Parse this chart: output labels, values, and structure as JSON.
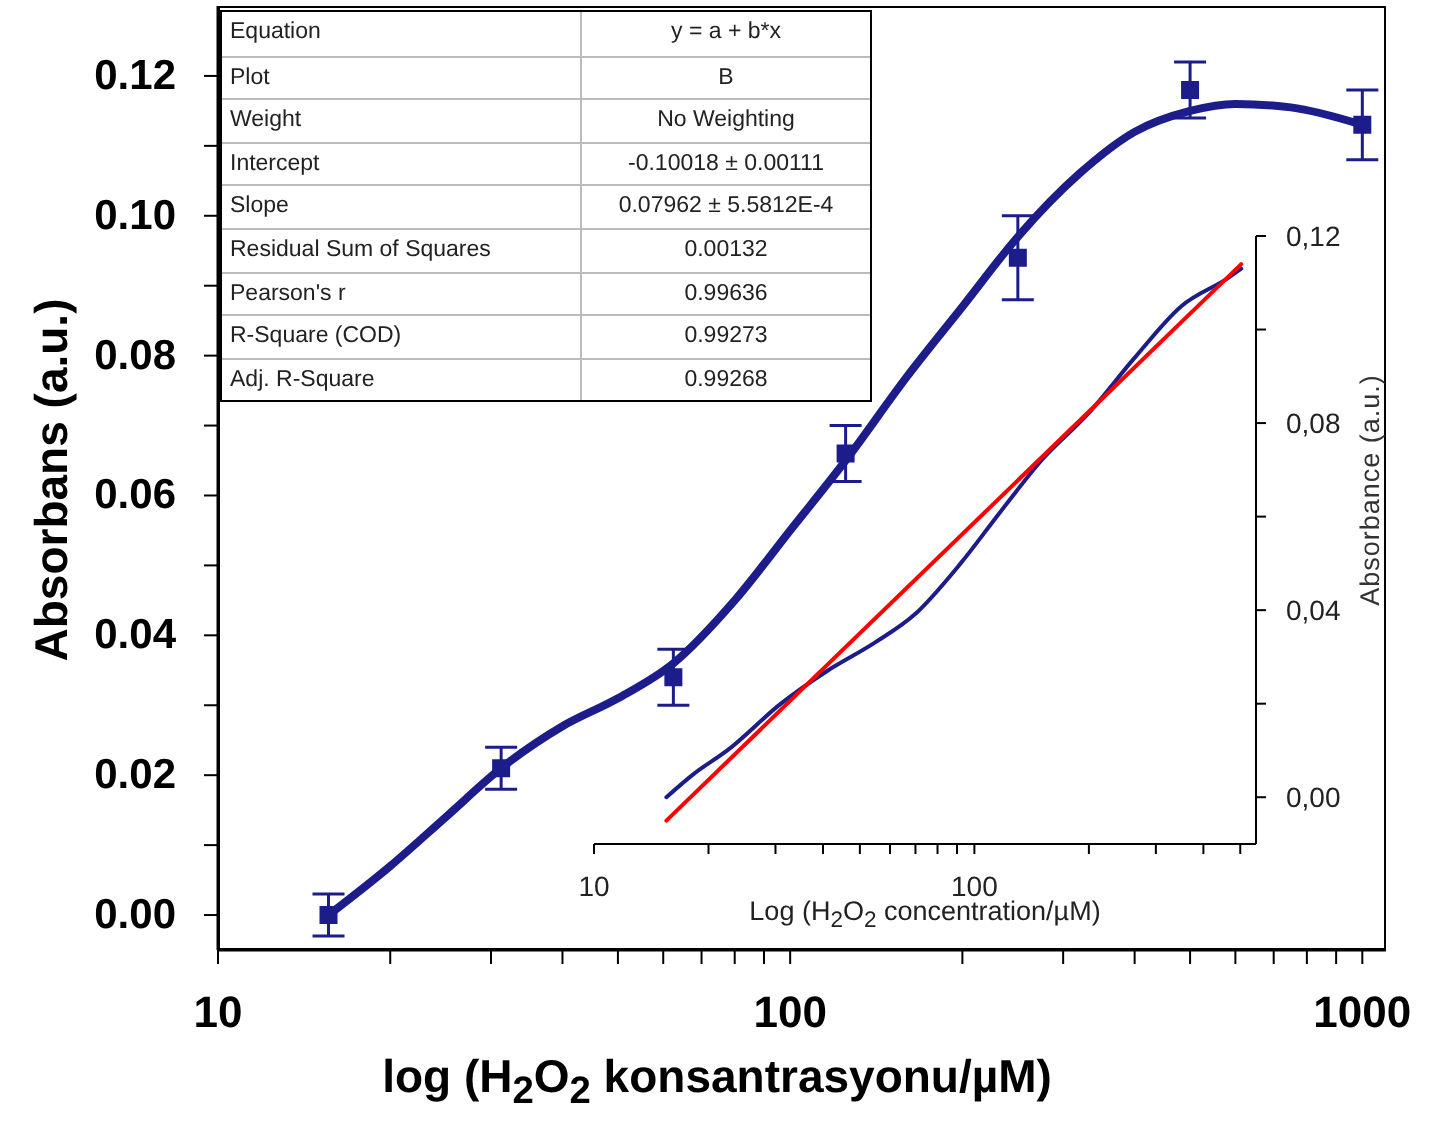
{
  "chart_data": [
    {
      "type": "scatter",
      "xlabel": "log (H$_{2}$O$_{2}$ konsantrasyonu/µM)",
      "ylabel": "Absorbans (a.u.)",
      "log": "x",
      "xlim": [
        10,
        1100
      ],
      "xticks": [
        10,
        {
          "value": 20,
          "label": null
        },
        {
          "value": 30,
          "label": null
        },
        {
          "value": 40,
          "label": null
        },
        {
          "value": 50,
          "label": null
        },
        {
          "value": 60,
          "label": null
        },
        {
          "value": 70,
          "label": null
        },
        {
          "value": 80,
          "label": null
        },
        {
          "value": 90,
          "label": null
        },
        100,
        {
          "value": 200,
          "label": null
        },
        {
          "value": 300,
          "label": null
        },
        {
          "value": 400,
          "label": null
        },
        {
          "value": 500,
          "label": null
        },
        {
          "value": 600,
          "label": null
        },
        {
          "value": 700,
          "label": null
        },
        {
          "value": 800,
          "label": null
        },
        {
          "value": 900,
          "label": null
        },
        1000
      ],
      "ylim": [
        -0.005,
        0.13
      ],
      "yticks": [
        {
          "value": 0,
          "label": "0.00"
        },
        {
          "value": 0.01,
          "label": null
        },
        0.02,
        {
          "value": 0.03,
          "label": null
        },
        0.04,
        {
          "value": 0.05,
          "label": null
        },
        0.06,
        {
          "value": 0.07,
          "label": null
        },
        0.08,
        {
          "value": 0.09,
          "label": null
        },
        {
          "value": 0.1,
          "label": "0.10"
        },
        {
          "value": 0.11,
          "label": null
        },
        0.12
      ],
      "annotations": [
        "Equation",
        "y = a + b*x",
        "Plot",
        "B",
        "Weight",
        "No Weighting",
        "Intercept",
        "-0.10018 ± 0.00111",
        "Slope",
        "0.07962 ± 5.5812E-4",
        "Residual Sum of Squares",
        "0.00132",
        "Pearson's r",
        "0.99636",
        "R-Square (COD)",
        "0.99273",
        "Adj. R-Square",
        "0.99268"
      ],
      "series": [
        {
          "color": "#1c1c8a",
          "marker": "square",
          "x": [
            15.6,
            31.25,
            62.5,
            125,
            250,
            500,
            1000
          ],
          "values": [
            0,
            0.021,
            0.034,
            0.066,
            0.094,
            0.118,
            0.113
          ],
          "errors": [
            0.003,
            0.003,
            0.004,
            0.004,
            0.006,
            0.004,
            0.005
          ]
        },
        {
          "type": "line",
          "color": "#1c1c8a",
          "marker": "none",
          "x": [
            15.6,
            20,
            25,
            31.25,
            40,
            50,
            62.5,
            80,
            100,
            125,
            160,
            200,
            250,
            320,
            400,
            500,
            600,
            750,
            1000
          ],
          "values": [
            0,
            0.007,
            0.014,
            0.021,
            0.027,
            0.031,
            0.036,
            0.045,
            0.055,
            0.065,
            0.077,
            0.087,
            0.097,
            0.106,
            0.112,
            0.115,
            0.116,
            0.1155,
            0.113
          ]
        }
      ]
    },
    {
      "type": "line",
      "xlabel": "Log (H$_{2}$O$_{2}$ concentration/µM)",
      "ylabel": "Absorbance (a.u.)",
      "log": "x",
      "xlim": [
        10,
        550
      ],
      "xticks": [
        10,
        {
          "value": 20,
          "label": null
        },
        {
          "value": 30,
          "label": null
        },
        {
          "value": 40,
          "label": null
        },
        {
          "value": 50,
          "label": null
        },
        {
          "value": 60,
          "label": null
        },
        {
          "value": 70,
          "label": null
        },
        {
          "value": 80,
          "label": null
        },
        {
          "value": 90,
          "label": null
        },
        100,
        {
          "value": 200,
          "label": null
        },
        {
          "value": 300,
          "label": null
        },
        {
          "value": 400,
          "label": null
        },
        {
          "value": 500,
          "label": null
        }
      ],
      "ylim": [
        -0.01,
        0.12
      ],
      "yticks": [
        {
          "value": 0,
          "label": "0,00"
        },
        {
          "value": 0.02,
          "label": null
        },
        {
          "value": 0.04,
          "label": "0,04"
        },
        {
          "value": 0.06,
          "label": null
        },
        {
          "value": 0.08,
          "label": "0,08"
        },
        {
          "value": 0.1,
          "label": null
        },
        {
          "value": 0.12,
          "label": "0,12"
        }
      ],
      "series": [
        {
          "color": "#1c1c8a",
          "x": [
            15.5,
            18.3,
            22.4,
            31,
            41,
            54.6,
            69.5,
            92,
            117,
            150,
            199,
            264,
            350,
            464,
            503
          ],
          "values": [
            0,
            0.005,
            0.01,
            0.02,
            0.027,
            0.033,
            0.039,
            0.05,
            0.061,
            0.072,
            0.082,
            0.094,
            0.105,
            0.111,
            0.113
          ]
        },
        {
          "color": "#ff0000",
          "x": [
            15.5,
            503
          ],
          "values": [
            -0.005,
            0.114
          ]
        }
      ]
    }
  ]
}
